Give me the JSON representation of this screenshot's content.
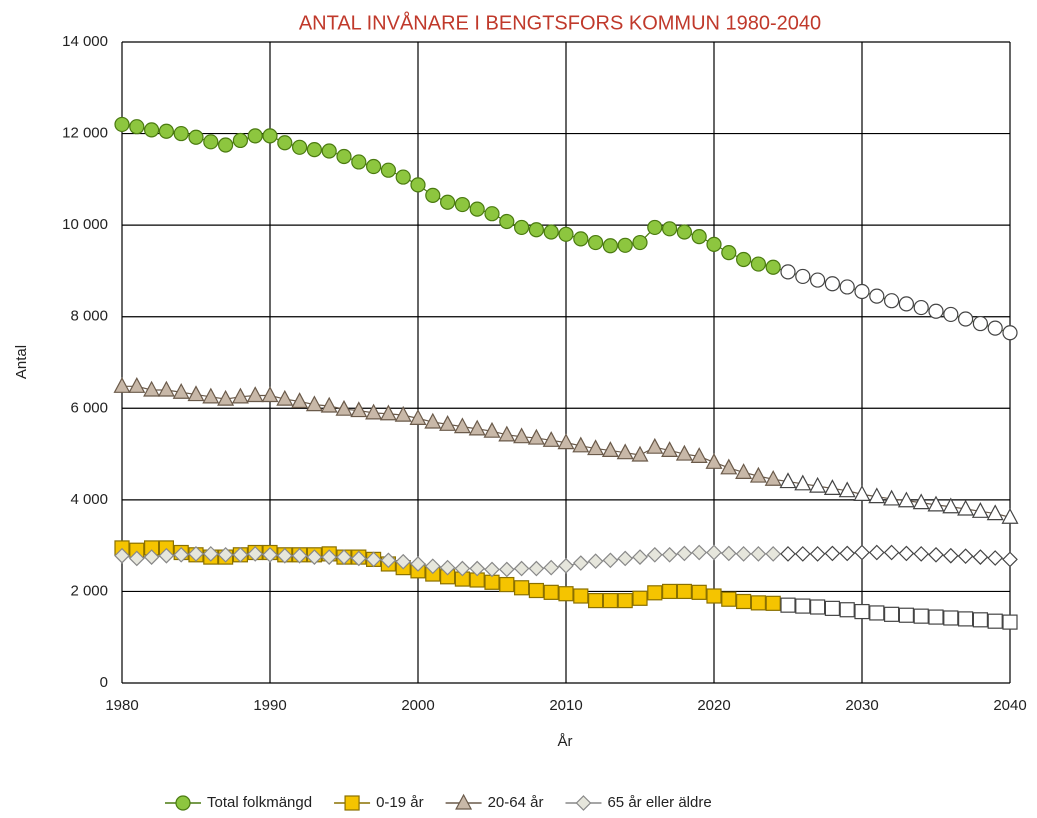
{
  "chart_data": {
    "type": "line",
    "title": "ANTAL INVÅNARE I BENGTSFORS KOMMUN 1980-2040",
    "x_label": "År",
    "y_label": "Antal",
    "x": [
      1980,
      1981,
      1982,
      1983,
      1984,
      1985,
      1986,
      1987,
      1988,
      1989,
      1990,
      1991,
      1992,
      1993,
      1994,
      1995,
      1996,
      1997,
      1998,
      1999,
      2000,
      2001,
      2002,
      2003,
      2004,
      2005,
      2006,
      2007,
      2008,
      2009,
      2010,
      2011,
      2012,
      2013,
      2014,
      2015,
      2016,
      2017,
      2018,
      2019,
      2020,
      2021,
      2022,
      2023,
      2024,
      2025,
      2026,
      2027,
      2028,
      2029,
      2030,
      2031,
      2032,
      2033,
      2034,
      2035,
      2036,
      2037,
      2038,
      2039,
      2040
    ],
    "series": [
      {
        "name": "Total folkmängd",
        "color": "#8dc63f",
        "line_color": "#4a7a10",
        "marker": "circle",
        "values": [
          12200,
          12150,
          12080,
          12050,
          12000,
          11920,
          11820,
          11750,
          11850,
          11950,
          11950,
          11800,
          11700,
          11650,
          11620,
          11500,
          11380,
          11280,
          11200,
          11050,
          10880,
          10650,
          10500,
          10450,
          10350,
          10250,
          10080,
          9950,
          9900,
          9850,
          9800,
          9700,
          9620,
          9550,
          9560,
          9620,
          9950,
          9920,
          9850,
          9750,
          9580,
          9400,
          9250,
          9150,
          9080,
          8980,
          8880,
          8800,
          8720,
          8650,
          8550,
          8450,
          8350,
          8280,
          8200,
          8120,
          8050,
          7950,
          7850,
          7750,
          7650
        ]
      },
      {
        "name": "0-19 år",
        "color": "#f5c400",
        "line_color": "#8a7000",
        "marker": "square",
        "values": [
          2950,
          2900,
          2950,
          2950,
          2850,
          2800,
          2750,
          2750,
          2800,
          2850,
          2850,
          2800,
          2800,
          2800,
          2820,
          2750,
          2750,
          2700,
          2600,
          2520,
          2450,
          2380,
          2320,
          2270,
          2250,
          2200,
          2150,
          2080,
          2020,
          1980,
          1950,
          1900,
          1800,
          1800,
          1800,
          1850,
          1970,
          2000,
          2000,
          1980,
          1900,
          1830,
          1780,
          1750,
          1740,
          1700,
          1680,
          1660,
          1630,
          1600,
          1560,
          1530,
          1500,
          1480,
          1460,
          1440,
          1420,
          1400,
          1380,
          1350,
          1330
        ]
      },
      {
        "name": "20-64 år",
        "color": "#c8b8a8",
        "line_color": "#6a5a4a",
        "marker": "triangle",
        "values": [
          6480,
          6480,
          6400,
          6400,
          6350,
          6300,
          6250,
          6200,
          6250,
          6280,
          6280,
          6200,
          6150,
          6080,
          6050,
          5980,
          5950,
          5900,
          5880,
          5850,
          5780,
          5700,
          5650,
          5600,
          5550,
          5500,
          5420,
          5380,
          5350,
          5300,
          5250,
          5180,
          5120,
          5080,
          5030,
          4980,
          5150,
          5080,
          5000,
          4950,
          4820,
          4700,
          4600,
          4520,
          4450,
          4400,
          4350,
          4300,
          4250,
          4200,
          4120,
          4070,
          4020,
          3980,
          3940,
          3890,
          3850,
          3800,
          3750,
          3700,
          3620
        ]
      },
      {
        "name": "65 år eller äldre",
        "color": "#e6e6dc",
        "line_color": "#888888",
        "marker": "diamond",
        "values": [
          2780,
          2720,
          2750,
          2780,
          2800,
          2820,
          2820,
          2800,
          2800,
          2820,
          2800,
          2780,
          2780,
          2750,
          2750,
          2750,
          2720,
          2700,
          2680,
          2650,
          2600,
          2550,
          2520,
          2500,
          2500,
          2480,
          2480,
          2500,
          2500,
          2520,
          2560,
          2620,
          2660,
          2680,
          2720,
          2750,
          2800,
          2800,
          2830,
          2850,
          2850,
          2830,
          2820,
          2820,
          2820,
          2820,
          2820,
          2820,
          2830,
          2830,
          2850,
          2850,
          2850,
          2830,
          2820,
          2800,
          2780,
          2770,
          2750,
          2730,
          2700
        ]
      }
    ],
    "forecast_from": 2025,
    "forecast_fill": "#ffffff",
    "forecast_stroke": "#444444",
    "xlim": [
      1980,
      2040
    ],
    "xticks": [
      1980,
      1990,
      2000,
      2010,
      2020,
      2030,
      2040
    ],
    "ylim": [
      0,
      14000
    ],
    "yticks": [
      0,
      {
        "value": 2000,
        "label": "2 000"
      },
      {
        "value": 4000,
        "label": "4 000"
      },
      {
        "value": 6000,
        "label": "6 000"
      },
      {
        "value": 8000,
        "label": "8 000"
      },
      {
        "value": 10000,
        "label": "10 000"
      },
      {
        "value": 12000,
        "label": "12 000"
      },
      {
        "value": 14000,
        "label": "14 000"
      }
    ],
    "grid": true,
    "legend": "bottom"
  }
}
